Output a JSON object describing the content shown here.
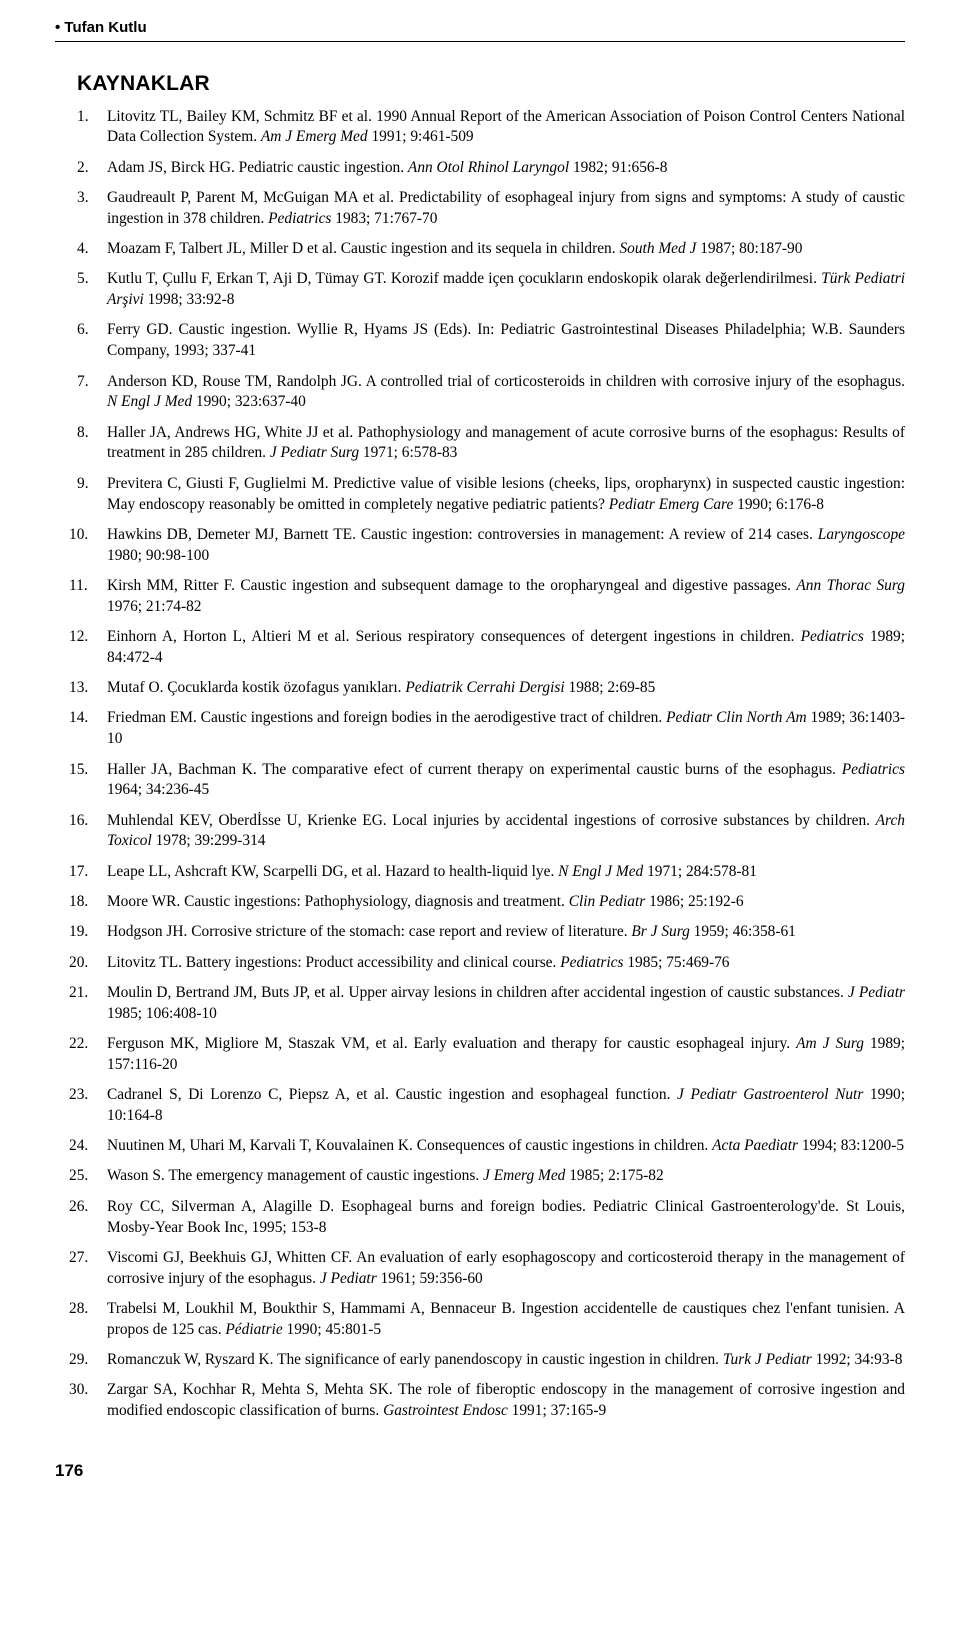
{
  "author_header": "Tufan Kutlu",
  "section_title": "KAYNAKLAR",
  "page_number": "176",
  "references": [
    {
      "text": "Litovitz TL, Bailey KM, Schmitz BF et al. 1990 Annual Report of the American Association of Poison Control Centers National Data Collection System. ",
      "ital": "Am J Emerg Med",
      "tail": " 1991; 9:461-509"
    },
    {
      "text": "Adam JS, Birck HG. Pediatric caustic ingestion. ",
      "ital": "Ann Otol Rhinol Laryngol",
      "tail": " 1982; 91:656-8"
    },
    {
      "text": "Gaudreault P, Parent M, McGuigan MA et al. Predictability of esophageal injury from signs and symptoms: A study of caustic ingestion in 378 children. ",
      "ital": "Pediatrics",
      "tail": " 1983; 71:767-70"
    },
    {
      "text": "Moazam F, Talbert JL, Miller D et al. Caustic ingestion and its sequela in children. ",
      "ital": "South Med J",
      "tail": " 1987; 80:187-90"
    },
    {
      "text": "Kutlu T, Çullu F, Erkan T, Aji D, Tümay GT. Korozif madde içen çocukların endoskopik olarak değerlendirilmesi. ",
      "ital": "Türk Pediatri Arşivi",
      "tail": " 1998; 33:92-8"
    },
    {
      "text": "Ferry GD. Caustic ingestion. Wyllie R, Hyams JS (Eds). In: Pediatric Gastrointestinal Diseases Philadelphia; W.B. Saunders Company, 1993; 337-41",
      "ital": "",
      "tail": ""
    },
    {
      "text": "Anderson KD, Rouse TM, Randolph JG. A controlled trial of corticosteroids in children with corrosive injury of the esophagus. ",
      "ital": "N Engl J Med",
      "tail": " 1990; 323:637-40"
    },
    {
      "text": "Haller JA, Andrews HG, White JJ et al. Pathophysiology and management of acute corrosive burns of the esophagus: Results of treatment in 285 children. ",
      "ital": "J Pediatr Surg",
      "tail": " 1971; 6:578-83"
    },
    {
      "text": "Previtera C, Giusti F, Guglielmi M. Predictive value of visible lesions (cheeks, lips, oropharynx) in suspected caustic ingestion: May endoscopy reasonably be omitted in completely negative pediatric patients? ",
      "ital": "Pediatr Emerg Care",
      "tail": " 1990; 6:176-8"
    },
    {
      "text": "Hawkins DB, Demeter MJ, Barnett TE. Caustic ingestion: controversies in management: A review of 214 cases. ",
      "ital": "Laryngoscope",
      "tail": " 1980; 90:98-100"
    },
    {
      "text": "Kirsh MM, Ritter F. Caustic ingestion and subsequent damage to the oropharyngeal and digestive passages. ",
      "ital": "Ann Thorac Surg",
      "tail": " 1976; 21:74-82"
    },
    {
      "text": "Einhorn A, Horton L, Altieri M et al. Serious respiratory consequences of detergent ingestions in children. ",
      "ital": "Pediatrics",
      "tail": " 1989; 84:472-4"
    },
    {
      "text": "Mutaf O. Çocuklarda kostik özofagus yanıkları. ",
      "ital": "Pediatrik Cerrahi Dergisi",
      "tail": " 1988; 2:69-85"
    },
    {
      "text": "Friedman EM. Caustic ingestions and foreign bodies in the aerodigestive tract of children. ",
      "ital": "Pediatr Clin North Am",
      "tail": " 1989; 36:1403-10"
    },
    {
      "text": "Haller JA, Bachman K. The comparative efect of current therapy on experimental caustic burns of the esophagus. ",
      "ital": "Pediatrics",
      "tail": " 1964; 34:236-45"
    },
    {
      "text": "Muhlendal KEV, Oberdİsse U, Krienke EG. Local injuries by accidental ingestions of corrosive substances by children. ",
      "ital": "Arch Toxicol",
      "tail": " 1978; 39:299-314"
    },
    {
      "text": "Leape LL, Ashcraft KW, Scarpelli DG, et al. Hazard to health-liquid lye. ",
      "ital": "N Engl J Med",
      "tail": " 1971; 284:578-81"
    },
    {
      "text": "Moore WR. Caustic ingestions: Pathophysiology, diagnosis and treatment. ",
      "ital": "Clin Pediatr",
      "tail": " 1986; 25:192-6"
    },
    {
      "text": "Hodgson JH. Corrosive stricture of the stomach: case report and review of literature. ",
      "ital": "Br J Surg",
      "tail": " 1959; 46:358-61"
    },
    {
      "text": "Litovitz TL. Battery ingestions: Product accessibility and clinical course. ",
      "ital": "Pediatrics",
      "tail": " 1985; 75:469-76"
    },
    {
      "text": "Moulin D, Bertrand JM, Buts JP, et al. Upper airvay lesions in children after accidental ingestion of caustic substances. ",
      "ital": "J Pediatr",
      "tail": " 1985; 106:408-10"
    },
    {
      "text": "Ferguson MK, Migliore M, Staszak VM, et al. Early evaluation and therapy for caustic esophageal injury. ",
      "ital": "Am J Surg",
      "tail": " 1989; 157:116-20"
    },
    {
      "text": "Cadranel S, Di Lorenzo C, Piepsz A, et al. Caustic ingestion and esophageal function. ",
      "ital": "J Pediatr Gastroenterol Nutr",
      "tail": " 1990; 10:164-8"
    },
    {
      "text": "Nuutinen M, Uhari M, Karvali T, Kouvalainen K. Consequences of caustic ingestions in children. ",
      "ital": "Acta Paediatr",
      "tail": " 1994; 83:1200-5"
    },
    {
      "text": "Wason S. The emergency management of caustic ingestions. ",
      "ital": "J Emerg Med",
      "tail": " 1985; 2:175-82"
    },
    {
      "text": "Roy CC, Silverman A, Alagille D. Esophageal burns and foreign bodies. Pediatric Clinical Gastroenterology'de. St Louis, Mosby-Year Book Inc, 1995; 153-8",
      "ital": "",
      "tail": ""
    },
    {
      "text": "Viscomi GJ, Beekhuis GJ, Whitten CF. An evaluation of early esophagoscopy and corticosteroid therapy in the management of corrosive injury of the esophagus. ",
      "ital": "J Pediatr",
      "tail": " 1961; 59:356-60"
    },
    {
      "text": "Trabelsi M, Loukhil M, Boukthir S, Hammami A, Bennaceur B. Ingestion accidentelle de caustiques chez l'enfant tunisien. A propos de 125 cas. ",
      "ital": "Pédiatrie",
      "tail": " 1990; 45:801-5"
    },
    {
      "text": "Romanczuk W, Ryszard K. The significance of early panendoscopy in caustic ingestion in children. ",
      "ital": "Turk J Pediatr",
      "tail": " 1992; 34:93-8"
    },
    {
      "text": "Zargar SA, Kochhar R, Mehta S, Mehta SK. The role of fiberoptic endoscopy in the management of corrosive ingestion and modified endoscopic classification of burns. ",
      "ital": "Gastrointest Endosc",
      "tail": " 1991; 37:165-9"
    }
  ]
}
